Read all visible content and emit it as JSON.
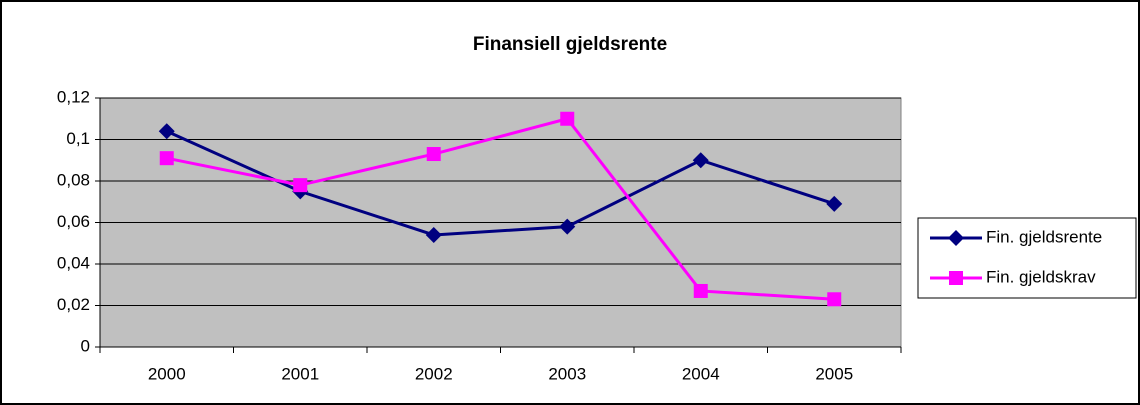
{
  "chart_data": {
    "type": "line",
    "title": "Finansiell gjeldsrente",
    "categories": [
      "2000",
      "2001",
      "2002",
      "2003",
      "2004",
      "2005"
    ],
    "series": [
      {
        "name": "Fin. gjeldsrente",
        "color": "#000080",
        "marker": "diamond",
        "values": [
          0.104,
          0.075,
          0.054,
          0.058,
          0.09,
          0.069
        ]
      },
      {
        "name": "Fin. gjeldskrav",
        "color": "#ff00ff",
        "marker": "square",
        "values": [
          0.091,
          0.078,
          0.093,
          0.11,
          0.027,
          0.023
        ]
      }
    ],
    "ylim": [
      0,
      0.12
    ],
    "yticks": [
      0,
      {
        "value": 0.02,
        "label": "0,02"
      },
      {
        "value": 0.04,
        "label": "0,04"
      },
      {
        "value": 0.06,
        "label": "0,06"
      },
      {
        "value": 0.08,
        "label": "0,08"
      },
      {
        "value": 0.1,
        "label": "0,1"
      },
      {
        "value": 0.12,
        "label": "0,12"
      }
    ],
    "grid": true,
    "plot_background": "#c0c0c0",
    "legend": "right"
  }
}
